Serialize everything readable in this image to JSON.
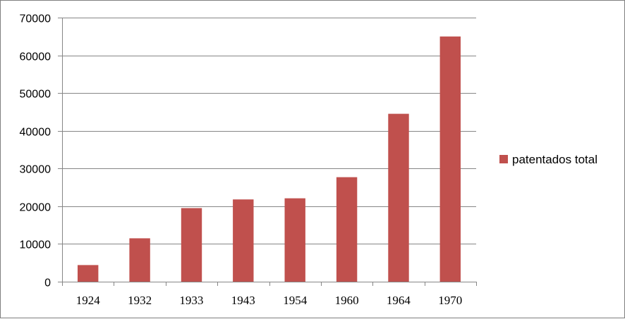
{
  "chart_data": {
    "type": "bar",
    "categories": [
      "1924",
      "1932",
      "1933",
      "1943",
      "1954",
      "1960",
      "1964",
      "1970"
    ],
    "series": [
      {
        "name": "patentados total",
        "values": [
          4400,
          11500,
          19500,
          21800,
          22100,
          27700,
          44500,
          65000
        ],
        "color": "#c0504d"
      }
    ],
    "ylim": [
      0,
      70000
    ],
    "yticks": [
      0,
      10000,
      20000,
      30000,
      40000,
      50000,
      60000,
      70000
    ],
    "ytick_labels": [
      "0",
      "10000",
      "20000",
      "30000",
      "40000",
      "50000",
      "60000",
      "70000"
    ],
    "grid": true,
    "legend": "right",
    "title": "",
    "xlabel": "",
    "ylabel": ""
  }
}
